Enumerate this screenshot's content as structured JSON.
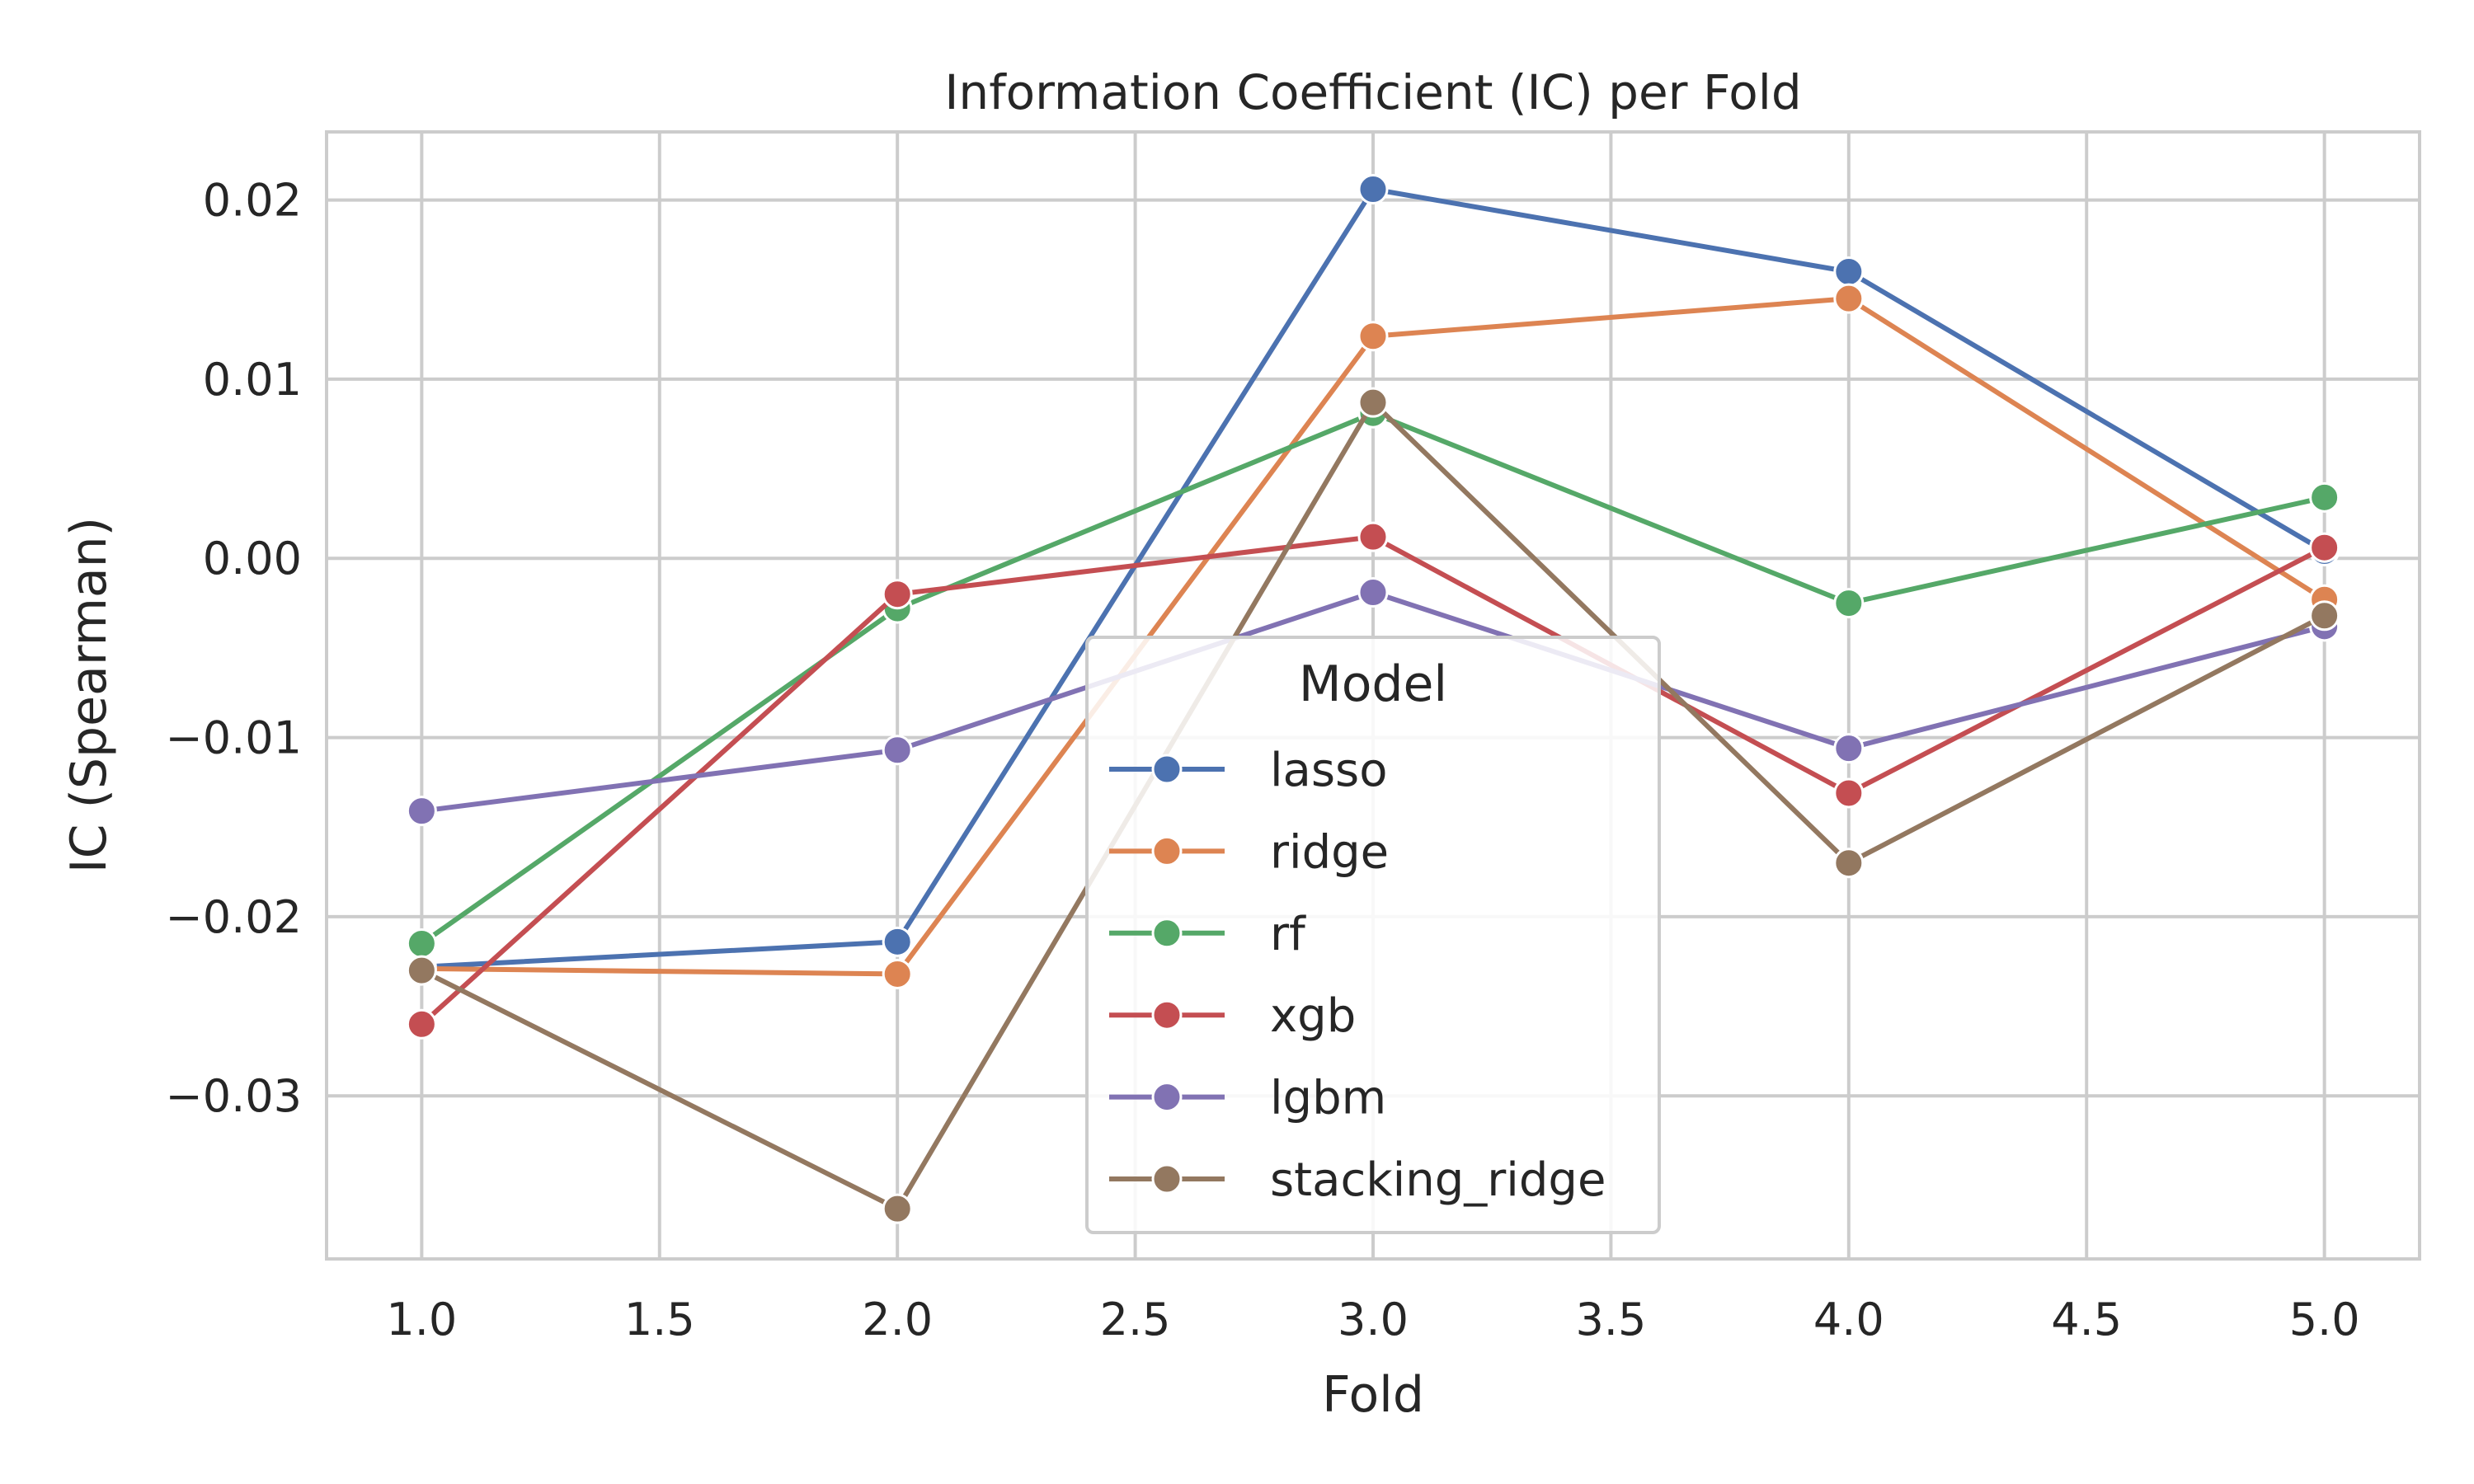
{
  "chart_data": {
    "type": "line",
    "title": "Information Coefficient (IC) per Fold",
    "xlabel": "Fold",
    "ylabel": "IC (Spearman)",
    "xlim": [
      0.8,
      5.2
    ],
    "ylim": [
      -0.0391,
      0.0238
    ],
    "x_ticks": [
      1.0,
      1.5,
      2.0,
      2.5,
      3.0,
      3.5,
      4.0,
      4.5,
      5.0
    ],
    "x_tick_labels": [
      "1.0",
      "1.5",
      "2.0",
      "2.5",
      "3.0",
      "3.5",
      "4.0",
      "4.5",
      "5.0"
    ],
    "y_ticks": [
      0.02,
      0.01,
      0.0,
      -0.01,
      -0.02,
      -0.03
    ],
    "y_tick_labels": [
      "0.02",
      "0.01",
      "0.00",
      "−0.01",
      "−0.02",
      "−0.03"
    ],
    "grid": true,
    "legend": {
      "title": "Model",
      "position": "center-bottom"
    },
    "x": [
      1,
      2,
      3,
      4,
      5
    ],
    "series": [
      {
        "name": "lasso",
        "color": "#4c72b0",
        "values": [
          -0.0228,
          -0.0214,
          0.0206,
          0.016,
          0.0004
        ]
      },
      {
        "name": "ridge",
        "color": "#dd8452",
        "values": [
          -0.0229,
          -0.0232,
          0.0124,
          0.0145,
          -0.0023
        ]
      },
      {
        "name": "rf",
        "color": "#55a868",
        "values": [
          -0.0215,
          -0.0028,
          0.0081,
          -0.0025,
          0.0034
        ]
      },
      {
        "name": "xgb",
        "color": "#c44e52",
        "values": [
          -0.026,
          -0.002,
          0.0012,
          -0.0131,
          0.0006
        ]
      },
      {
        "name": "lgbm",
        "color": "#8172b3",
        "values": [
          -0.0141,
          -0.0107,
          -0.0019,
          -0.0106,
          -0.0038
        ]
      },
      {
        "name": "stacking_ridge",
        "color": "#937860",
        "values": [
          -0.023,
          -0.0363,
          0.0087,
          -0.017,
          -0.0032
        ]
      }
    ]
  }
}
